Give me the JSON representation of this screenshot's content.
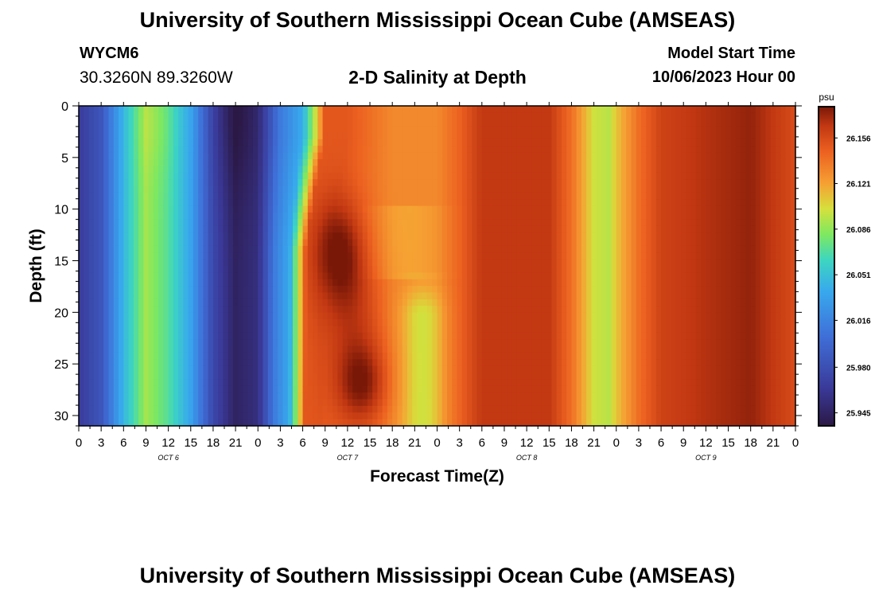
{
  "page": {
    "title": "University of Southern Mississippi Ocean Cube (AMSEAS)",
    "footer_title": "University of Southern Mississippi Ocean Cube (AMSEAS)",
    "station_id": "WYCM6",
    "coordinates": "30.3260N  89.3260W",
    "subtitle": "2-D Salinity at Depth",
    "model_start_label": "Model Start Time",
    "model_start_value": "10/06/2023 Hour 00"
  },
  "chart_data": {
    "type": "heatmap",
    "xlabel": "Forecast Time(Z)",
    "ylabel": "Depth (ft)",
    "x_range_hours": [
      0,
      96
    ],
    "y_range_ft": [
      0,
      31
    ],
    "x_tick_labels": [
      "0",
      "3",
      "6",
      "9",
      "12",
      "15",
      "18",
      "21",
      "0",
      "3",
      "6",
      "9",
      "12",
      "15",
      "18",
      "21",
      "0",
      "3",
      "6",
      "9",
      "12",
      "15",
      "18",
      "21",
      "0",
      "3",
      "6",
      "9",
      "12",
      "15",
      "18",
      "21",
      "0"
    ],
    "y_ticks": [
      0,
      5,
      10,
      15,
      20,
      25,
      30
    ],
    "day_labels": [
      {
        "text": "OCT 6",
        "hour": 12
      },
      {
        "text": "OCT 7",
        "hour": 36
      },
      {
        "text": "OCT 8",
        "hour": 60
      },
      {
        "text": "OCT 9",
        "hour": 84
      }
    ],
    "colorbar": {
      "unit": "psu",
      "min": 25.935,
      "max": 26.18,
      "tick_values": [
        "26.156",
        "26.121",
        "26.086",
        "26.051",
        "26.016",
        "25.980",
        "25.945"
      ]
    },
    "surface_columns_psu": [
      {
        "hour": 0,
        "value": 25.965
      },
      {
        "hour": 3,
        "value": 25.985
      },
      {
        "hour": 6,
        "value": 26.045
      },
      {
        "hour": 9,
        "value": 26.09
      },
      {
        "hour": 12,
        "value": 26.07
      },
      {
        "hour": 15,
        "value": 26.035
      },
      {
        "hour": 18,
        "value": 25.975
      },
      {
        "hour": 21,
        "value": 25.945
      },
      {
        "hour": 24,
        "value": 25.955
      },
      {
        "hour": 27,
        "value": 26.01
      },
      {
        "hour": 30,
        "value": 26.04
      },
      {
        "hour": 32,
        "value": 26.11
      },
      {
        "hour": 33,
        "value": 26.15
      },
      {
        "hour": 36,
        "value": 26.15
      },
      {
        "hour": 39,
        "value": 26.14
      },
      {
        "hour": 42,
        "value": 26.13
      },
      {
        "hour": 45,
        "value": 26.13
      },
      {
        "hour": 48,
        "value": 26.13
      },
      {
        "hour": 51,
        "value": 26.145
      },
      {
        "hour": 54,
        "value": 26.165
      },
      {
        "hour": 57,
        "value": 26.165
      },
      {
        "hour": 60,
        "value": 26.165
      },
      {
        "hour": 63,
        "value": 26.165
      },
      {
        "hour": 66,
        "value": 26.14
      },
      {
        "hour": 69,
        "value": 26.1
      },
      {
        "hour": 71,
        "value": 26.095
      },
      {
        "hour": 72,
        "value": 26.11
      },
      {
        "hour": 75,
        "value": 26.14
      },
      {
        "hour": 78,
        "value": 26.16
      },
      {
        "hour": 84,
        "value": 26.168
      },
      {
        "hour": 90,
        "value": 26.175
      },
      {
        "hour": 93,
        "value": 26.165
      },
      {
        "hour": 96,
        "value": 26.155
      }
    ]
  }
}
